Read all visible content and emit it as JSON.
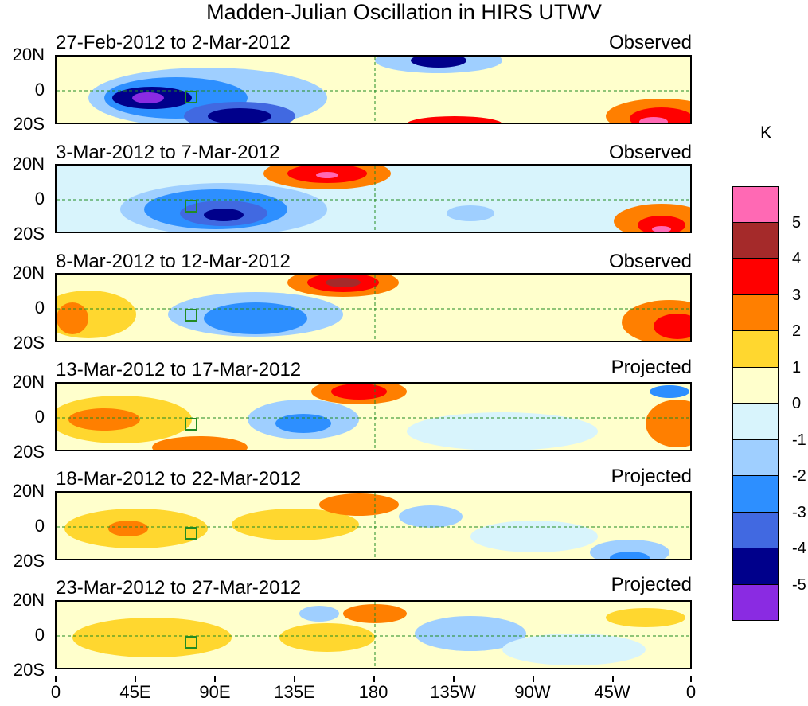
{
  "title": "Madden-Julian Oscillation in HIRS UTWV",
  "lat_labels": [
    "20N",
    "0",
    "20S"
  ],
  "x_tick_labels": [
    "0",
    "45E",
    "90E",
    "135E",
    "180",
    "135W",
    "90W",
    "45W",
    "0"
  ],
  "panels": [
    {
      "dates": "27-Feb-2012 to 2-Mar-2012",
      "status": "Observed"
    },
    {
      "dates": "3-Mar-2012 to 7-Mar-2012",
      "status": "Observed"
    },
    {
      "dates": "8-Mar-2012 to 12-Mar-2012",
      "status": "Observed"
    },
    {
      "dates": "13-Mar-2012 to 17-Mar-2012",
      "status": "Projected"
    },
    {
      "dates": "18-Mar-2012 to 22-Mar-2012",
      "status": "Projected"
    },
    {
      "dates": "23-Mar-2012 to 27-Mar-2012",
      "status": "Projected"
    }
  ],
  "colorbar": {
    "units": "K",
    "labels": [
      "5",
      "4",
      "3",
      "2",
      "1",
      "0",
      "-1",
      "-2",
      "-3",
      "-4",
      "-5"
    ],
    "colors": [
      "#ff69b4",
      "#a52a2a",
      "#ff0000",
      "#ff7f00",
      "#ffd72f",
      "#ffffcc",
      "#d8f4fc",
      "#9fcfff",
      "#2d8fff",
      "#4169e1",
      "#00008b",
      "#8a2be2"
    ]
  },
  "legend_colors": {
    "coast": "#228b22",
    "dashed": "#228b22"
  }
}
